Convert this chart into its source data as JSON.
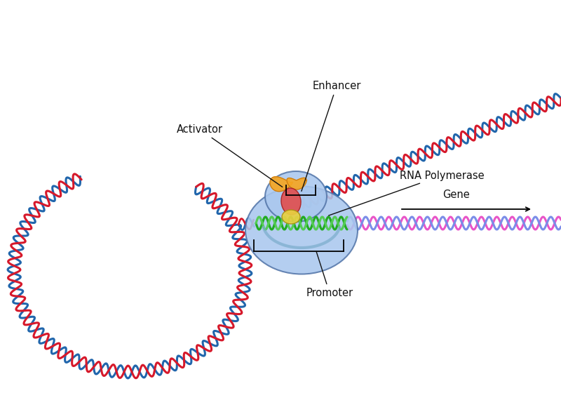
{
  "bg_color": "#ffffff",
  "dna_blue": "#2166ac",
  "dna_red": "#d6192b",
  "dna_pink": "#e855c8",
  "dna_pink2": "#7b8de8",
  "dna_green": "#22aa22",
  "dna_green2": "#55cc55",
  "activator_orange": "#f5a623",
  "activator_red": "#e05050",
  "activator_yellow": "#e8d040",
  "rnap_blue": "#aac8ee",
  "rnap_outline": "#5577aa",
  "label_color": "#111111",
  "label_fontsize": 10.5,
  "enhancer_label": "Enhancer",
  "activator_label": "Activator",
  "rnapol_label": "RNA Polymerase",
  "promoter_label": "Promoter",
  "gene_label": "Gene",
  "fig_width": 8.0,
  "fig_height": 5.87,
  "dpi": 100
}
